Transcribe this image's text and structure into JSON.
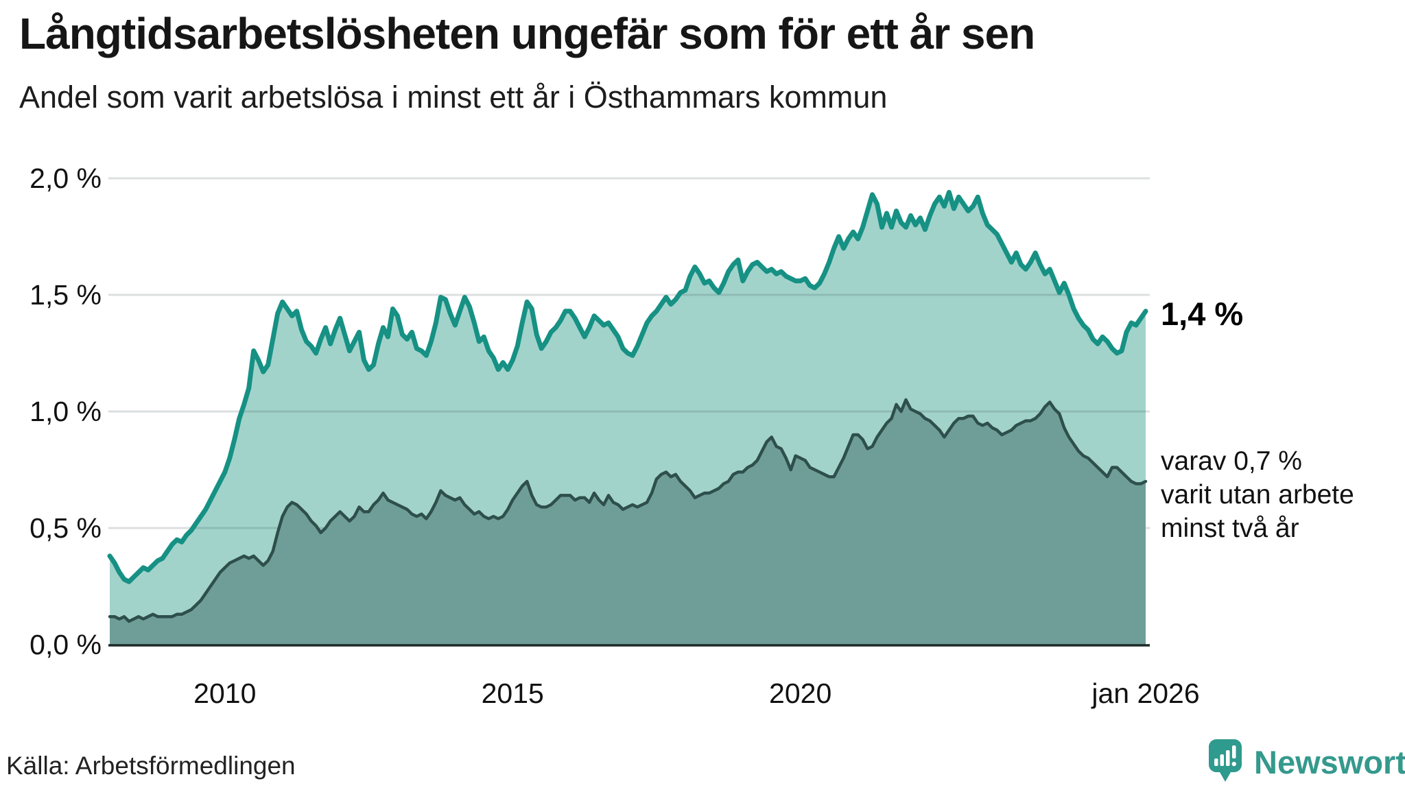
{
  "header": {
    "title": "Långtidsarbetslösheten ungefär som för ett år sen",
    "subtitle": "Andel som varit arbetslösa i minst ett år i Östhammars kommun"
  },
  "chart_data": {
    "type": "area",
    "title": "Långtidsarbetslösheten ungefär som för ett år sen",
    "subtitle": "Andel som varit arbetslösa i minst ett år i Östhammars kommun",
    "unit": "%",
    "frequency": "monthly",
    "x_start": "2008-01",
    "x_end": "2026-01",
    "grid": true,
    "legend_position": "none",
    "ylim": [
      0,
      2.0
    ],
    "y_axis": {
      "ticks": [
        {
          "label": "0,0 %",
          "value": 0.0
        },
        {
          "label": "0,5 %",
          "value": 0.5
        },
        {
          "label": "1,0 %",
          "value": 1.0
        },
        {
          "label": "1,5 %",
          "value": 1.5
        },
        {
          "label": "2,0 %",
          "value": 2.0
        }
      ]
    },
    "x_axis": {
      "ticks": [
        {
          "label": "2010",
          "month_index": 24
        },
        {
          "label": "2015",
          "month_index": 84
        },
        {
          "label": "2020",
          "month_index": 144
        },
        {
          "label": "jan 2026",
          "month_index": 216
        }
      ]
    },
    "series": [
      {
        "name": "Andel arbetslösa minst ett år",
        "line_color": "#169184",
        "fill_color": "#a2d3cb",
        "end_label": "1,4 %",
        "values": [
          0.38,
          0.35,
          0.31,
          0.28,
          0.27,
          0.29,
          0.31,
          0.33,
          0.32,
          0.34,
          0.36,
          0.37,
          0.4,
          0.43,
          0.45,
          0.44,
          0.47,
          0.49,
          0.52,
          0.55,
          0.58,
          0.62,
          0.66,
          0.7,
          0.74,
          0.8,
          0.88,
          0.97,
          1.03,
          1.1,
          1.26,
          1.22,
          1.17,
          1.2,
          1.31,
          1.42,
          1.47,
          1.44,
          1.41,
          1.43,
          1.35,
          1.3,
          1.28,
          1.25,
          1.31,
          1.36,
          1.29,
          1.35,
          1.4,
          1.33,
          1.26,
          1.3,
          1.34,
          1.22,
          1.18,
          1.2,
          1.29,
          1.36,
          1.32,
          1.44,
          1.41,
          1.33,
          1.31,
          1.34,
          1.27,
          1.26,
          1.24,
          1.3,
          1.38,
          1.49,
          1.48,
          1.42,
          1.37,
          1.43,
          1.49,
          1.45,
          1.38,
          1.3,
          1.32,
          1.26,
          1.23,
          1.18,
          1.21,
          1.18,
          1.22,
          1.28,
          1.38,
          1.47,
          1.44,
          1.33,
          1.27,
          1.3,
          1.34,
          1.36,
          1.39,
          1.43,
          1.43,
          1.4,
          1.36,
          1.32,
          1.36,
          1.41,
          1.39,
          1.37,
          1.38,
          1.35,
          1.32,
          1.27,
          1.25,
          1.24,
          1.28,
          1.33,
          1.38,
          1.41,
          1.43,
          1.46,
          1.49,
          1.46,
          1.48,
          1.51,
          1.52,
          1.58,
          1.62,
          1.59,
          1.55,
          1.56,
          1.53,
          1.51,
          1.55,
          1.6,
          1.63,
          1.65,
          1.56,
          1.6,
          1.63,
          1.64,
          1.62,
          1.6,
          1.61,
          1.59,
          1.6,
          1.58,
          1.57,
          1.56,
          1.56,
          1.57,
          1.54,
          1.53,
          1.55,
          1.59,
          1.64,
          1.7,
          1.75,
          1.7,
          1.74,
          1.77,
          1.74,
          1.79,
          1.86,
          1.93,
          1.89,
          1.79,
          1.85,
          1.79,
          1.86,
          1.81,
          1.79,
          1.84,
          1.8,
          1.83,
          1.78,
          1.84,
          1.89,
          1.92,
          1.88,
          1.94,
          1.87,
          1.92,
          1.89,
          1.86,
          1.88,
          1.92,
          1.85,
          1.8,
          1.78,
          1.76,
          1.72,
          1.68,
          1.64,
          1.68,
          1.63,
          1.61,
          1.64,
          1.68,
          1.63,
          1.59,
          1.61,
          1.56,
          1.51,
          1.55,
          1.5,
          1.44,
          1.4,
          1.37,
          1.35,
          1.31,
          1.29,
          1.32,
          1.3,
          1.27,
          1.25,
          1.26,
          1.34,
          1.38,
          1.37,
          1.4,
          1.43
        ]
      },
      {
        "name": "Andel arbetslösa minst två år",
        "line_color": "#2e4f4b",
        "fill_color": "#6f9e99",
        "end_label": "varav 0,7 % varit utan arbete minst två år",
        "values": [
          0.12,
          0.12,
          0.11,
          0.12,
          0.1,
          0.11,
          0.12,
          0.11,
          0.12,
          0.13,
          0.12,
          0.12,
          0.12,
          0.12,
          0.13,
          0.13,
          0.14,
          0.15,
          0.17,
          0.19,
          0.22,
          0.25,
          0.28,
          0.31,
          0.33,
          0.35,
          0.36,
          0.37,
          0.38,
          0.37,
          0.38,
          0.36,
          0.34,
          0.36,
          0.4,
          0.48,
          0.55,
          0.59,
          0.61,
          0.6,
          0.58,
          0.56,
          0.53,
          0.51,
          0.48,
          0.5,
          0.53,
          0.55,
          0.57,
          0.55,
          0.53,
          0.55,
          0.59,
          0.57,
          0.57,
          0.6,
          0.62,
          0.65,
          0.62,
          0.61,
          0.6,
          0.59,
          0.58,
          0.56,
          0.55,
          0.56,
          0.54,
          0.57,
          0.61,
          0.66,
          0.64,
          0.63,
          0.62,
          0.63,
          0.6,
          0.58,
          0.56,
          0.57,
          0.55,
          0.54,
          0.55,
          0.54,
          0.55,
          0.58,
          0.62,
          0.65,
          0.68,
          0.7,
          0.64,
          0.6,
          0.59,
          0.59,
          0.6,
          0.62,
          0.64,
          0.64,
          0.64,
          0.62,
          0.63,
          0.63,
          0.61,
          0.65,
          0.62,
          0.6,
          0.64,
          0.61,
          0.6,
          0.58,
          0.59,
          0.6,
          0.59,
          0.6,
          0.61,
          0.65,
          0.71,
          0.73,
          0.74,
          0.72,
          0.73,
          0.7,
          0.68,
          0.66,
          0.63,
          0.64,
          0.65,
          0.65,
          0.66,
          0.67,
          0.69,
          0.7,
          0.73,
          0.74,
          0.74,
          0.76,
          0.77,
          0.79,
          0.83,
          0.87,
          0.89,
          0.85,
          0.84,
          0.8,
          0.75,
          0.81,
          0.8,
          0.79,
          0.76,
          0.75,
          0.74,
          0.73,
          0.72,
          0.72,
          0.76,
          0.8,
          0.85,
          0.9,
          0.9,
          0.88,
          0.84,
          0.85,
          0.89,
          0.92,
          0.95,
          0.97,
          1.03,
          1.0,
          1.05,
          1.01,
          1.0,
          0.99,
          0.97,
          0.96,
          0.94,
          0.92,
          0.89,
          0.92,
          0.95,
          0.97,
          0.97,
          0.98,
          0.98,
          0.95,
          0.94,
          0.95,
          0.93,
          0.92,
          0.9,
          0.91,
          0.92,
          0.94,
          0.95,
          0.96,
          0.96,
          0.97,
          0.99,
          1.02,
          1.04,
          1.01,
          0.99,
          0.93,
          0.89,
          0.86,
          0.83,
          0.81,
          0.8,
          0.78,
          0.76,
          0.74,
          0.72,
          0.76,
          0.76,
          0.74,
          0.72,
          0.7,
          0.69,
          0.69,
          0.7
        ]
      }
    ],
    "annotations": {
      "end_label_total": "1,4 %",
      "end_label_sub_lines": [
        "varav 0,7 %",
        "varit utan arbete",
        "minst två år"
      ]
    }
  },
  "colors": {
    "grid": "#d9d9de",
    "baseline": "#1c2a28",
    "accent_teal": "#169184",
    "light_fill": "#a2d3cb",
    "dark_fill": "#6f9e99",
    "dark_line": "#2e4f4b",
    "logo_teal": "#35998d"
  },
  "footer": {
    "source": "Källa: Arbetsförmedlingen",
    "logo_text": "Newsworthy"
  }
}
